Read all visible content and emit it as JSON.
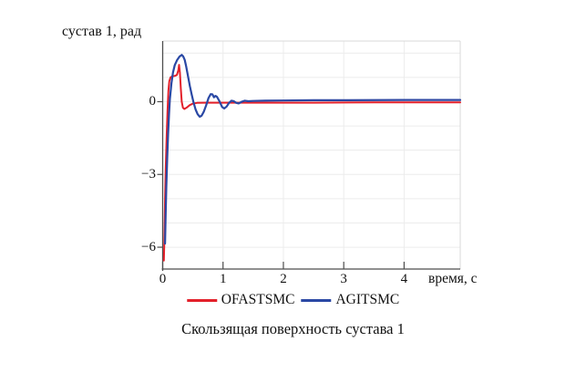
{
  "figure": {
    "y_axis_title": "сустав 1, рад",
    "x_axis_title": "время, с",
    "caption": "Скользящая поверхность сустава 1"
  },
  "legend": [
    {
      "label": "OFASTSMC",
      "color": "#e3202a"
    },
    {
      "label": "AGITSMC",
      "color": "#2a48a4"
    }
  ],
  "colors": {
    "grid": "#ececec",
    "box_edge": "#d9d9d9",
    "axis": "#4d4d4d",
    "text": "#111111"
  },
  "chart_data": {
    "type": "line",
    "title": "Скользящая поверхность сустава 1",
    "xlabel": "время, с",
    "ylabel": "сустав 1, рад",
    "xlim": [
      0,
      4.93
    ],
    "ylim": [
      -6.9,
      2.5
    ],
    "x_ticks": [
      0,
      1,
      2,
      3,
      4
    ],
    "y_ticks": [
      0,
      -3,
      -6
    ],
    "x_gridlines": [
      1,
      2,
      3,
      4
    ],
    "y_gridlines": [
      -6,
      -5,
      -4,
      -3,
      -2,
      -1,
      0,
      1,
      2
    ],
    "grid": true,
    "legend_position": "bottom",
    "series": [
      {
        "name": "OFASTSMC",
        "color": "#e3202a",
        "width": 2,
        "points": [
          [
            0.02,
            -6.55
          ],
          [
            0.03,
            -5.5
          ],
          [
            0.04,
            -4.0
          ],
          [
            0.05,
            -2.8
          ],
          [
            0.065,
            -1.5
          ],
          [
            0.08,
            -0.4
          ],
          [
            0.095,
            0.45
          ],
          [
            0.11,
            0.85
          ],
          [
            0.13,
            1.0
          ],
          [
            0.16,
            1.05
          ],
          [
            0.2,
            1.06
          ],
          [
            0.235,
            1.1
          ],
          [
            0.26,
            1.3
          ],
          [
            0.272,
            1.52
          ],
          [
            0.285,
            1.2
          ],
          [
            0.3,
            0.55
          ],
          [
            0.315,
            0.0
          ],
          [
            0.335,
            -0.25
          ],
          [
            0.36,
            -0.3
          ],
          [
            0.4,
            -0.24
          ],
          [
            0.45,
            -0.14
          ],
          [
            0.5,
            -0.08
          ],
          [
            0.57,
            -0.05
          ],
          [
            0.7,
            -0.04
          ],
          [
            1.0,
            -0.04
          ],
          [
            1.5,
            -0.04
          ],
          [
            2.5,
            -0.04
          ],
          [
            3.5,
            -0.03
          ],
          [
            4.93,
            -0.03
          ]
        ]
      },
      {
        "name": "AGITSMC",
        "color": "#2a48a4",
        "width": 2.2,
        "points": [
          [
            0.04,
            -5.85
          ],
          [
            0.05,
            -4.6
          ],
          [
            0.06,
            -3.5
          ],
          [
            0.075,
            -2.3
          ],
          [
            0.09,
            -1.3
          ],
          [
            0.105,
            -0.5
          ],
          [
            0.12,
            0.1
          ],
          [
            0.145,
            0.75
          ],
          [
            0.17,
            1.2
          ],
          [
            0.2,
            1.5
          ],
          [
            0.24,
            1.72
          ],
          [
            0.28,
            1.86
          ],
          [
            0.315,
            1.93
          ],
          [
            0.34,
            1.87
          ],
          [
            0.365,
            1.72
          ],
          [
            0.39,
            1.45
          ],
          [
            0.42,
            1.05
          ],
          [
            0.45,
            0.65
          ],
          [
            0.48,
            0.3
          ],
          [
            0.51,
            -0.02
          ],
          [
            0.545,
            -0.32
          ],
          [
            0.58,
            -0.52
          ],
          [
            0.615,
            -0.62
          ],
          [
            0.645,
            -0.58
          ],
          [
            0.68,
            -0.42
          ],
          [
            0.72,
            -0.15
          ],
          [
            0.76,
            0.15
          ],
          [
            0.795,
            0.31
          ],
          [
            0.825,
            0.3
          ],
          [
            0.85,
            0.18
          ],
          [
            0.875,
            0.24
          ],
          [
            0.9,
            0.2
          ],
          [
            0.94,
            0.02
          ],
          [
            0.985,
            -0.22
          ],
          [
            1.02,
            -0.28
          ],
          [
            1.06,
            -0.2
          ],
          [
            1.1,
            -0.05
          ],
          [
            1.14,
            0.04
          ],
          [
            1.18,
            0.02
          ],
          [
            1.22,
            -0.05
          ],
          [
            1.26,
            -0.07
          ],
          [
            1.31,
            0.0
          ],
          [
            1.36,
            0.04
          ],
          [
            1.42,
            0.02
          ],
          [
            1.5,
            0.03
          ],
          [
            1.7,
            0.04
          ],
          [
            2.0,
            0.05
          ],
          [
            2.5,
            0.06
          ],
          [
            3.0,
            0.06
          ],
          [
            4.0,
            0.07
          ],
          [
            4.93,
            0.07
          ]
        ]
      }
    ]
  }
}
